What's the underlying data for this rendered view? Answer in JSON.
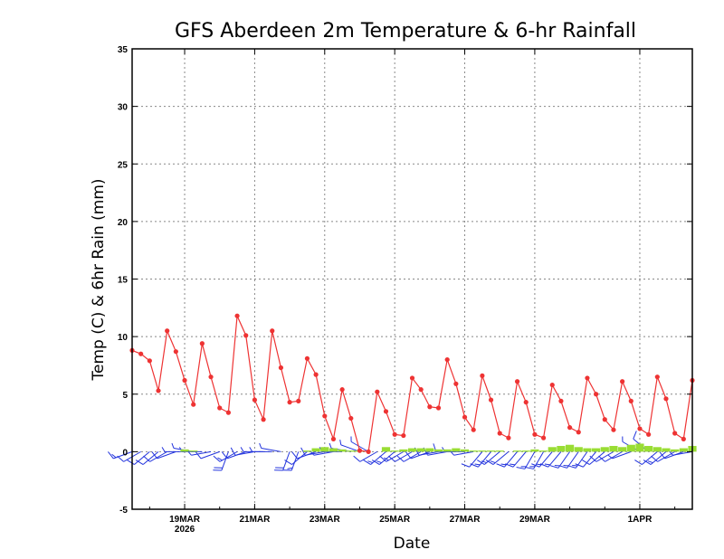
{
  "chart_data": {
    "type": "line",
    "title": "GFS Aberdeen 2m Temperature & 6-hr Rainfall",
    "xlabel": "Date",
    "ylabel": "Temp (C) & 6hr Rain (mm)",
    "ylim": [
      -5,
      35
    ],
    "yticks": [
      -5,
      0,
      5,
      10,
      15,
      20,
      25,
      30,
      35
    ],
    "xlim_days": [
      17.5,
      33.5
    ],
    "xticks": [
      {
        "day": 19,
        "label": "19MAR",
        "sublabel": "2026"
      },
      {
        "day": 21,
        "label": "21MAR",
        "sublabel": ""
      },
      {
        "day": 23,
        "label": "23MAR",
        "sublabel": ""
      },
      {
        "day": 25,
        "label": "25MAR",
        "sublabel": ""
      },
      {
        "day": 27,
        "label": "27MAR",
        "sublabel": ""
      },
      {
        "day": 29,
        "label": "29MAR",
        "sublabel": ""
      },
      {
        "day": 32,
        "label": "1APR",
        "sublabel": ""
      }
    ],
    "series": [
      {
        "name": "2m Temperature",
        "color": "#ee3333",
        "start_day": 17.5,
        "step_days": 0.25,
        "values": [
          8.8,
          8.5,
          7.9,
          5.3,
          10.5,
          8.7,
          6.2,
          4.1,
          9.4,
          6.5,
          3.8,
          3.4,
          11.8,
          10.1,
          4.5,
          2.8,
          10.5,
          7.3,
          4.3,
          4.4,
          8.1,
          6.7,
          3.1,
          1.1,
          5.4,
          2.9,
          0.1,
          0.0,
          5.2,
          3.5,
          1.5,
          1.4,
          6.4,
          5.4,
          3.9,
          3.8,
          8.0,
          5.9,
          3.0,
          1.9,
          6.6,
          4.5,
          1.6,
          1.2,
          6.1,
          4.3,
          1.5,
          1.2,
          5.8,
          4.4,
          2.1,
          1.7,
          6.4,
          5.0,
          2.8,
          1.9,
          6.1,
          4.4,
          2.0,
          1.5,
          6.5,
          4.6,
          1.6,
          1.1,
          6.2
        ]
      },
      {
        "name": "6-hr Rainfall",
        "color": "#99dd33",
        "start_day": 17.5,
        "step_days": 0.25,
        "values": [
          0,
          0,
          0,
          0,
          0,
          0,
          0.2,
          0.1,
          0,
          0,
          0,
          0,
          0,
          0,
          0,
          0,
          0,
          0,
          0,
          0,
          0.1,
          0.3,
          0.4,
          0.3,
          0.2,
          0.1,
          0.1,
          0,
          0,
          0.4,
          0.1,
          0.2,
          0.3,
          0.3,
          0.3,
          0.2,
          0.2,
          0.3,
          0.2,
          0.1,
          0.1,
          0.1,
          0.1,
          0,
          0.1,
          0.1,
          0.2,
          0.1,
          0.4,
          0.5,
          0.6,
          0.4,
          0.3,
          0.3,
          0.4,
          0.5,
          0.4,
          0.6,
          0.7,
          0.5,
          0.4,
          0.3,
          0.2,
          0.3,
          0.5
        ]
      }
    ],
    "wind": {
      "name": "Wind barbs",
      "color": "#2233dd",
      "start_day": 17.5,
      "step_days": 0.25,
      "directions_deg": [
        250,
        240,
        230,
        230,
        240,
        250,
        270,
        280,
        270,
        260,
        250,
        200,
        240,
        250,
        260,
        270,
        270,
        280,
        200,
        200,
        230,
        250,
        260,
        260,
        270,
        280,
        290,
        300,
        240,
        230,
        230,
        240,
        240,
        240,
        250,
        260,
        260,
        270,
        270,
        260,
        220,
        220,
        230,
        230,
        220,
        220,
        210,
        210,
        220,
        220,
        215,
        215,
        215,
        220,
        230,
        240,
        240,
        250,
        300,
        310,
        230,
        230,
        240,
        250,
        260
      ],
      "speeds_kt": [
        15,
        12,
        12,
        10,
        10,
        10,
        8,
        8,
        8,
        8,
        12,
        20,
        15,
        12,
        10,
        8,
        8,
        8,
        20,
        15,
        12,
        10,
        10,
        8,
        8,
        6,
        6,
        6,
        12,
        15,
        15,
        15,
        12,
        12,
        12,
        10,
        10,
        10,
        8,
        8,
        12,
        15,
        15,
        15,
        15,
        15,
        15,
        15,
        15,
        15,
        15,
        15,
        15,
        12,
        12,
        10,
        10,
        8,
        8,
        10,
        12,
        15,
        12,
        10,
        8
      ]
    }
  }
}
